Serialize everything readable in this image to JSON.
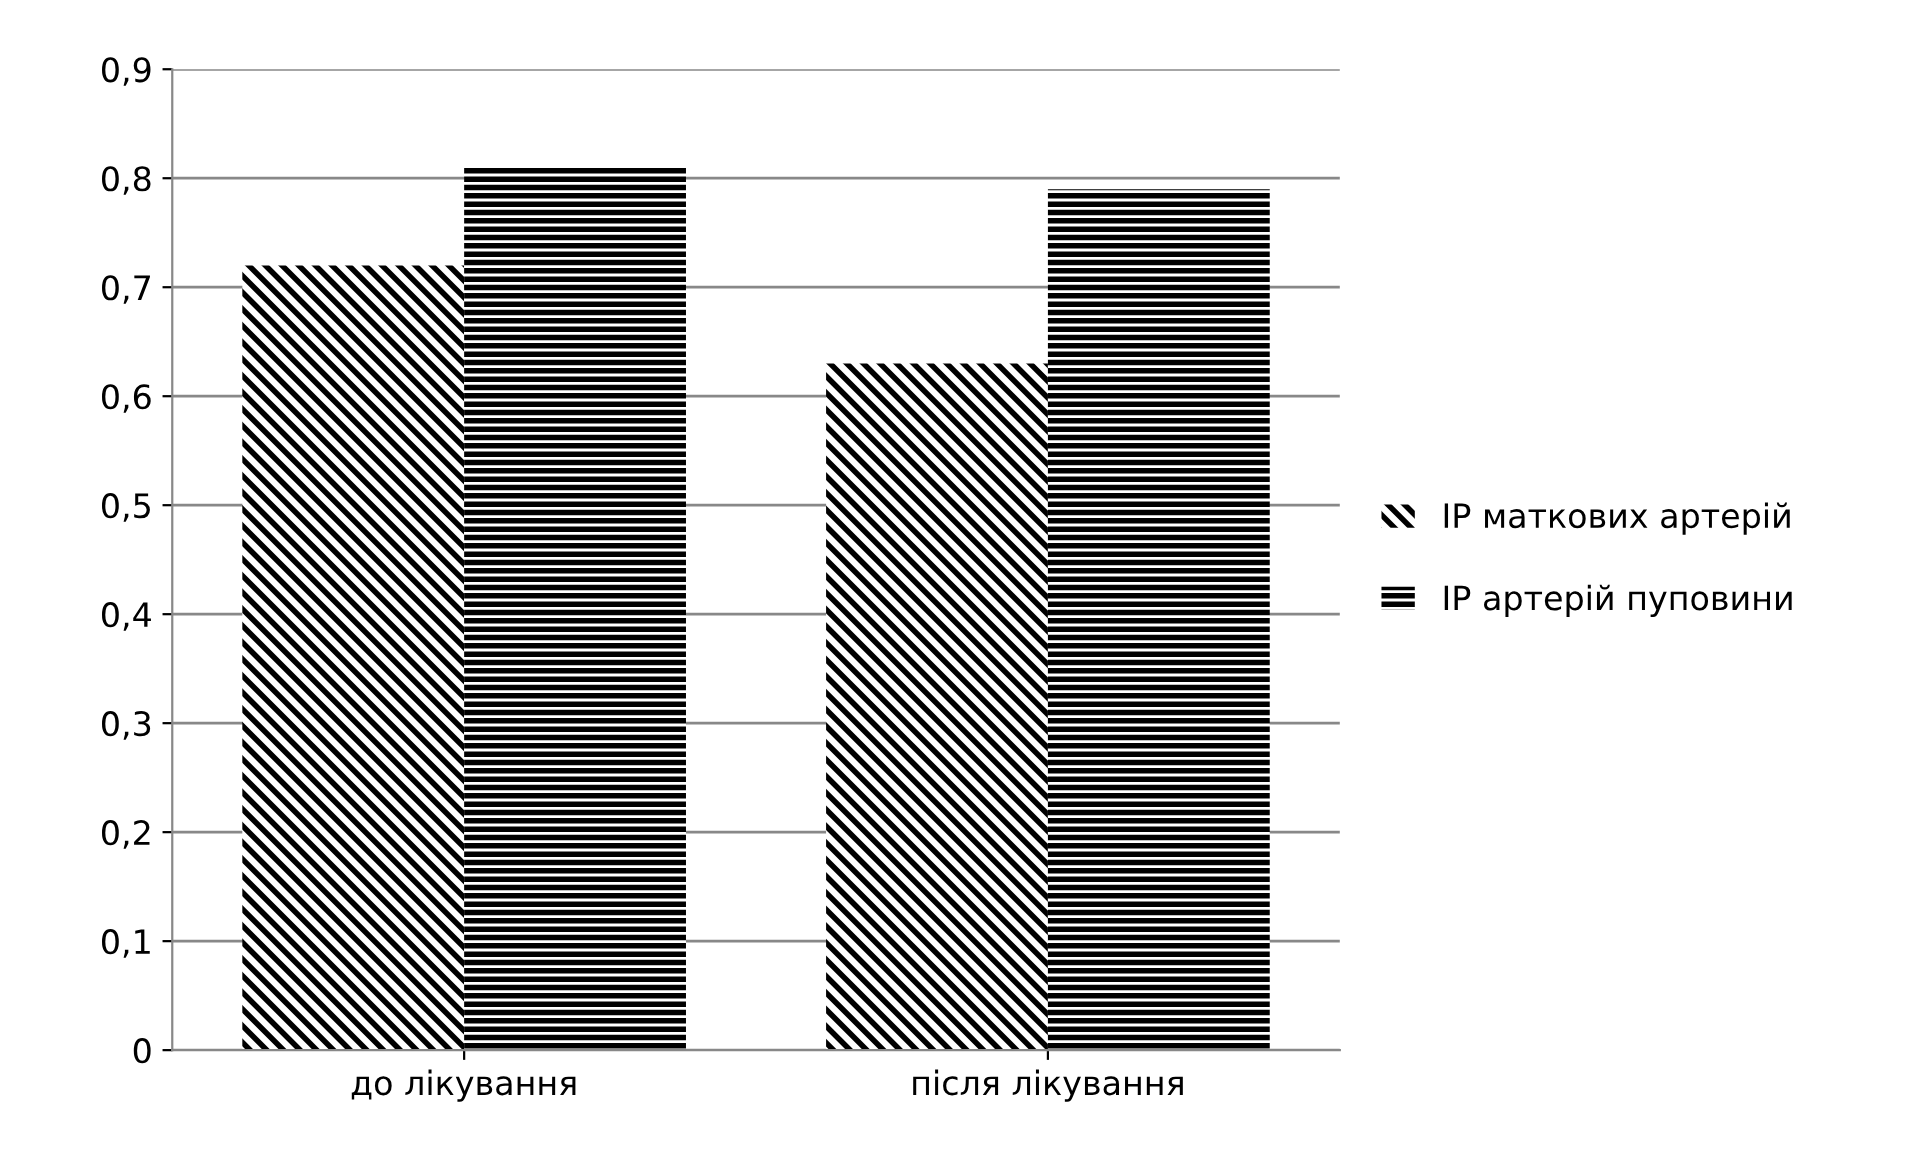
{
  "chart_data": {
    "type": "bar",
    "categories": [
      "до лікування",
      "після лікування"
    ],
    "series": [
      {
        "name": "IP маткових артерій",
        "color": "#000000",
        "values": [
          0.72,
          0.63
        ]
      },
      {
        "name": "IP артерій пуповини",
        "color": "#000000",
        "values": [
          0.81,
          0.79
        ]
      }
    ],
    "ylim": [
      0,
      0.9
    ],
    "yticks": [
      {
        "value": 0,
        "label": "0"
      },
      {
        "value": 0.1,
        "label": "0,1"
      },
      {
        "value": 0.2,
        "label": "0,2"
      },
      {
        "value": 0.3,
        "label": "0,3"
      },
      {
        "value": 0.4,
        "label": "0,4"
      },
      {
        "value": 0.5,
        "label": "0,5"
      },
      {
        "value": 0.6,
        "label": "0,6"
      },
      {
        "value": 0.7,
        "label": "0,7"
      },
      {
        "value": 0.8,
        "label": "0,8"
      },
      {
        "value": 0.9,
        "label": "0,9"
      }
    ],
    "grid": "y",
    "legend": "right"
  }
}
